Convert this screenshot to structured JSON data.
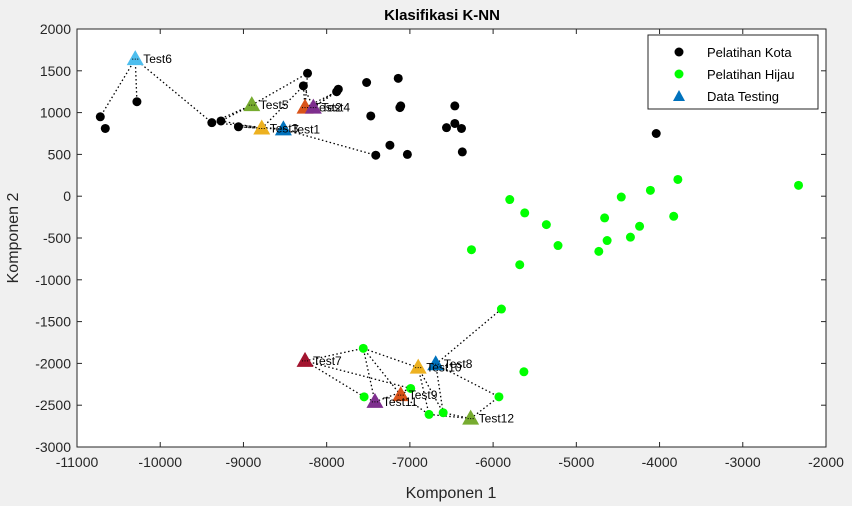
{
  "chart_data": {
    "type": "scatter",
    "title": "Klasifikasi K-NN",
    "xlabel": "Komponen 1",
    "ylabel": "Komponen 2",
    "xlim": [
      -11000,
      -2000
    ],
    "ylim": [
      -3000,
      2000
    ],
    "xticks": [
      -11000,
      -10000,
      -9000,
      -8000,
      -7000,
      -6000,
      -5000,
      -4000,
      -3000,
      -2000
    ],
    "yticks": [
      -3000,
      -2500,
      -2000,
      -1500,
      -1000,
      -500,
      0,
      500,
      1000,
      1500,
      2000
    ],
    "grid": false,
    "legend_position": "top-right",
    "legend": [
      "Pelatihan Kota",
      "Pelatihan Hijau",
      "Data Testing"
    ],
    "series": [
      {
        "name": "Pelatihan Kota",
        "color": "#000000",
        "points": [
          [
            -10720,
            950
          ],
          [
            -10660,
            810
          ],
          [
            -10280,
            1130
          ],
          [
            -9380,
            880
          ],
          [
            -9270,
            900
          ],
          [
            -9060,
            830
          ],
          [
            -8280,
            1320
          ],
          [
            -8230,
            1470
          ],
          [
            -7880,
            1250
          ],
          [
            -7860,
            1280
          ],
          [
            -7520,
            1360
          ],
          [
            -7470,
            960
          ],
          [
            -7410,
            490
          ],
          [
            -7240,
            610
          ],
          [
            -7140,
            1410
          ],
          [
            -7120,
            1060
          ],
          [
            -7110,
            1080
          ],
          [
            -7030,
            500
          ],
          [
            -6560,
            820
          ],
          [
            -6460,
            1080
          ],
          [
            -6460,
            870
          ],
          [
            -6380,
            810
          ],
          [
            -6370,
            530
          ],
          [
            -4040,
            750
          ]
        ]
      },
      {
        "name": "Pelatihan Hijau",
        "color": "#00ff00",
        "points": [
          [
            -6260,
            -640
          ],
          [
            -5800,
            -40
          ],
          [
            -5680,
            -820
          ],
          [
            -5620,
            -200
          ],
          [
            -5360,
            -340
          ],
          [
            -5220,
            -590
          ],
          [
            -4730,
            -660
          ],
          [
            -4660,
            -260
          ],
          [
            -4630,
            -530
          ],
          [
            -4460,
            -10
          ],
          [
            -4350,
            -490
          ],
          [
            -4240,
            -360
          ],
          [
            -4110,
            70
          ],
          [
            -3830,
            -240
          ],
          [
            -3780,
            200
          ],
          [
            -2330,
            130
          ],
          [
            -5900,
            -1350
          ],
          [
            -7560,
            -1820
          ],
          [
            -7550,
            -2400
          ],
          [
            -6990,
            -2300
          ],
          [
            -6770,
            -2610
          ],
          [
            -6600,
            -2590
          ],
          [
            -5930,
            -2400
          ],
          [
            -5630,
            -2100
          ]
        ]
      },
      {
        "name": "Data Testing",
        "color": "#0072bd",
        "points": [
          [
            -8520,
            800
          ],
          [
            -10300,
            1640
          ],
          [
            -8900,
            1090
          ],
          [
            -8260,
            1060
          ],
          [
            -8160,
            1060
          ],
          [
            -8780,
            810
          ],
          [
            -8260,
            -1970
          ],
          [
            -6690,
            -2010
          ],
          [
            -7110,
            -2380
          ],
          [
            -6900,
            -2050
          ],
          [
            -7420,
            -2460
          ],
          [
            -6270,
            -2660
          ]
        ]
      }
    ],
    "test_points": [
      {
        "label": "Test1",
        "x": -8520,
        "y": 800,
        "color": "#0072bd"
      },
      {
        "label": "Test2",
        "x": -8260,
        "y": 1060,
        "color": "#d95319"
      },
      {
        "label": "Test3",
        "x": -8780,
        "y": 810,
        "color": "#edb120"
      },
      {
        "label": "Test4",
        "x": -8160,
        "y": 1060,
        "color": "#7e2f8e"
      },
      {
        "label": "Test5",
        "x": -8900,
        "y": 1090,
        "color": "#77ac30"
      },
      {
        "label": "Test6",
        "x": -10300,
        "y": 1640,
        "color": "#4dbeee"
      },
      {
        "label": "Test7",
        "x": -8260,
        "y": -1970,
        "color": "#a2142f"
      },
      {
        "label": "Test8",
        "x": -6690,
        "y": -2010,
        "color": "#0072bd"
      },
      {
        "label": "Test9",
        "x": -7110,
        "y": -2380,
        "color": "#d95319"
      },
      {
        "label": "Test10",
        "x": -6900,
        "y": -2050,
        "color": "#edb120"
      },
      {
        "label": "Test11",
        "x": -7420,
        "y": -2460,
        "color": "#7e2f8e"
      },
      {
        "label": "Test12",
        "x": -6270,
        "y": -2660,
        "color": "#77ac30"
      }
    ],
    "neighbor_links": [
      {
        "from": [
          -8520,
          800
        ],
        "to": [
          [
            -9380,
            880
          ],
          [
            -9060,
            830
          ],
          [
            -7410,
            490
          ]
        ]
      },
      {
        "from": [
          -8260,
          1060
        ],
        "to": [
          [
            -8280,
            1320
          ],
          [
            -8230,
            1470
          ],
          [
            -7880,
            1250
          ]
        ]
      },
      {
        "from": [
          -8780,
          810
        ],
        "to": [
          [
            -9270,
            900
          ],
          [
            -9060,
            830
          ],
          [
            -8280,
            1320
          ]
        ]
      },
      {
        "from": [
          -8160,
          1060
        ],
        "to": [
          [
            -8280,
            1320
          ],
          [
            -7880,
            1250
          ],
          [
            -7860,
            1280
          ]
        ]
      },
      {
        "from": [
          -8900,
          1090
        ],
        "to": [
          [
            -9380,
            880
          ],
          [
            -8230,
            1470
          ],
          [
            -9270,
            900
          ]
        ]
      },
      {
        "from": [
          -10300,
          1640
        ],
        "to": [
          [
            -10720,
            950
          ],
          [
            -10280,
            1130
          ],
          [
            -9380,
            880
          ]
        ]
      },
      {
        "from": [
          -8260,
          -1970
        ],
        "to": [
          [
            -7550,
            -2400
          ],
          [
            -6990,
            -2300
          ],
          [
            -7560,
            -1820
          ]
        ]
      },
      {
        "from": [
          -6690,
          -2010
        ],
        "to": [
          [
            -5900,
            -1350
          ],
          [
            -6600,
            -2590
          ],
          [
            -5930,
            -2400
          ]
        ]
      },
      {
        "from": [
          -7110,
          -2380
        ],
        "to": [
          [
            -6990,
            -2300
          ],
          [
            -7560,
            -1820
          ],
          [
            -6770,
            -2610
          ]
        ]
      },
      {
        "from": [
          -6900,
          -2050
        ],
        "to": [
          [
            -7560,
            -1820
          ],
          [
            -6770,
            -2610
          ],
          [
            -6600,
            -2590
          ]
        ]
      },
      {
        "from": [
          -7420,
          -2460
        ],
        "to": [
          [
            -7550,
            -2400
          ],
          [
            -6990,
            -2300
          ],
          [
            -7560,
            -1820
          ]
        ]
      },
      {
        "from": [
          -6270,
          -2660
        ],
        "to": [
          [
            -6770,
            -2610
          ],
          [
            -5930,
            -2400
          ],
          [
            -6600,
            -2590
          ]
        ]
      }
    ]
  }
}
